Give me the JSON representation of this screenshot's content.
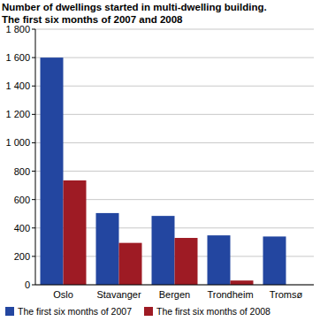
{
  "chart_data": {
    "type": "bar",
    "title": "Number of dwellings started in multi-dwelling building.",
    "subtitle": "The first six months of  2007 and 2008",
    "categories": [
      "Oslo",
      "Stavanger",
      "Bergen",
      "Trondheim",
      "Tromsø"
    ],
    "series": [
      {
        "name": "The first six months of 2007",
        "color": "#2346a0",
        "values": [
          1600,
          505,
          485,
          348,
          340
        ]
      },
      {
        "name": "The first six months of 2008",
        "color": "#9e1b24",
        "values": [
          735,
          295,
          330,
          30,
          0
        ]
      }
    ],
    "ylim": [
      0,
      1800
    ],
    "yticks": [
      0,
      200,
      400,
      600,
      800,
      {
        "value": 1000,
        "label": "1 000"
      },
      {
        "value": 1200,
        "label": "1 200"
      },
      {
        "value": 1400,
        "label": "1 400"
      },
      {
        "value": 1600,
        "label": "1 600"
      },
      {
        "value": 1800,
        "label": "1 800"
      }
    ],
    "grid": true,
    "legend": "bottom"
  }
}
